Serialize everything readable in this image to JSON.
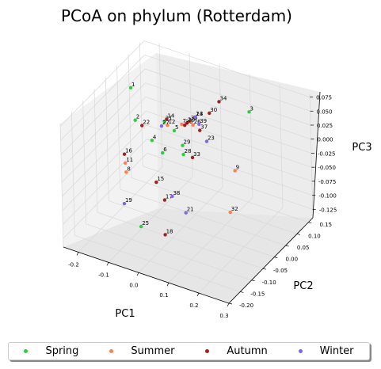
{
  "chart_data": {
    "type": "scatter",
    "title": "PCoA on phylum (Rotterdam)",
    "xlabel": "PC1",
    "ylabel": "PC2",
    "zlabel": "PC3",
    "xlim": [
      -0.25,
      0.3
    ],
    "ylim": [
      -0.2,
      0.17
    ],
    "zlim": [
      -0.14,
      0.08
    ],
    "x_ticks": [
      "-0.2",
      "-0.1",
      "0.0",
      "0.1",
      "0.2",
      "0.3"
    ],
    "y_ticks": [
      "-0.20",
      "-0.15",
      "-0.10",
      "-0.05",
      "0.00",
      "0.05",
      "0.10",
      "0.15"
    ],
    "z_ticks": [
      "-0.125",
      "-0.100",
      "-0.075",
      "-0.050",
      "-0.025",
      "0.000",
      "0.025",
      "0.050",
      "0.075"
    ],
    "grid": true,
    "legend_position": "bottom",
    "series": [
      {
        "name": "Spring",
        "color": "#2ecc40",
        "points": [
          {
            "label": "1",
            "x": -0.19,
            "y": 0.03,
            "z": 0.06
          },
          {
            "label": "2",
            "x": -0.17,
            "y": 0.02,
            "z": 0.01
          },
          {
            "label": "3",
            "x": 0.15,
            "y": 0.1,
            "z": 0.05
          },
          {
            "label": "4",
            "x": -0.1,
            "y": 0.0,
            "z": -0.005
          },
          {
            "label": "5",
            "x": -0.04,
            "y": 0.02,
            "z": 0.015
          },
          {
            "label": "6",
            "x": -0.05,
            "y": -0.02,
            "z": -0.01
          },
          {
            "label": "25",
            "x": -0.05,
            "y": -0.12,
            "z": -0.1
          },
          {
            "label": "28",
            "x": 0.02,
            "y": -0.02,
            "z": 0.0
          },
          {
            "label": "29",
            "x": 0.01,
            "y": -0.01,
            "z": 0.01
          },
          {
            "label": "31",
            "x": -0.08,
            "y": 0.03,
            "z": 0.02
          }
        ]
      },
      {
        "name": "Summer",
        "color": "#ff7f50",
        "points": [
          {
            "label": "7",
            "x": -0.03,
            "y": 0.04,
            "z": 0.02
          },
          {
            "label": "8",
            "x": -0.15,
            "y": -0.05,
            "z": -0.05
          },
          {
            "label": "9",
            "x": 0.16,
            "y": 0.02,
            "z": -0.02
          },
          {
            "label": "10",
            "x": -0.02,
            "y": 0.05,
            "z": 0.02
          },
          {
            "label": "11",
            "x": -0.16,
            "y": -0.04,
            "z": -0.04
          },
          {
            "label": "12",
            "x": -0.07,
            "y": 0.03,
            "z": 0.015
          },
          {
            "label": "13",
            "x": 0.0,
            "y": 0.06,
            "z": 0.03
          },
          {
            "label": "26",
            "x": 0.0,
            "y": 0.05,
            "z": 0.02
          },
          {
            "label": "32",
            "x": 0.25,
            "y": -0.12,
            "z": -0.02
          },
          {
            "label": "35",
            "x": -0.01,
            "y": 0.05,
            "z": 0.025
          }
        ]
      },
      {
        "name": "Autumn",
        "color": "#a31f1f",
        "points": [
          {
            "label": "14",
            "x": -0.08,
            "y": 0.04,
            "z": 0.02
          },
          {
            "label": "15",
            "x": -0.05,
            "y": -0.05,
            "z": -0.05
          },
          {
            "label": "16",
            "x": -0.17,
            "y": -0.03,
            "z": -0.03
          },
          {
            "label": "17",
            "x": 0.0,
            "y": -0.08,
            "z": -0.06
          },
          {
            "label": "18",
            "x": 0.03,
            "y": -0.12,
            "z": -0.1
          },
          {
            "label": "20",
            "x": -0.02,
            "y": 0.05,
            "z": 0.02
          },
          {
            "label": "22",
            "x": -0.14,
            "y": 0.01,
            "z": 0.01
          },
          {
            "label": "30",
            "x": 0.04,
            "y": 0.07,
            "z": 0.04
          },
          {
            "label": "33",
            "x": 0.05,
            "y": -0.02,
            "z": 0.0
          },
          {
            "label": "34",
            "x": 0.05,
            "y": 0.1,
            "z": 0.05
          },
          {
            "label": "36",
            "x": -0.02,
            "y": 0.04,
            "z": 0.02
          },
          {
            "label": "37",
            "x": 0.03,
            "y": 0.04,
            "z": 0.02
          }
        ]
      },
      {
        "name": "Winter",
        "color": "#7b68ee",
        "points": [
          {
            "label": "19",
            "x": -0.12,
            "y": -0.1,
            "z": -0.08
          },
          {
            "label": "21",
            "x": 0.07,
            "y": -0.08,
            "z": -0.07
          },
          {
            "label": "23",
            "x": 0.06,
            "y": 0.03,
            "z": 0.01
          },
          {
            "label": "24",
            "x": 0.0,
            "y": 0.06,
            "z": 0.03
          },
          {
            "label": "27",
            "x": -0.09,
            "y": 0.03,
            "z": 0.01
          },
          {
            "label": "38",
            "x": 0.01,
            "y": -0.06,
            "z": -0.06
          },
          {
            "label": "39",
            "x": 0.02,
            "y": 0.05,
            "z": 0.025
          }
        ]
      }
    ]
  }
}
